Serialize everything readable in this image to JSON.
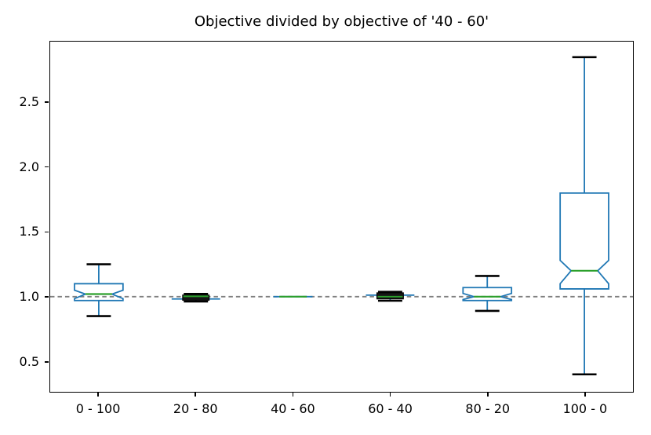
{
  "chart_data": {
    "type": "boxplot",
    "title": "Objective divided by objective of '40 - 60'",
    "categories": [
      "0 - 100",
      "20 - 80",
      "40 - 60",
      "60 - 40",
      "80 - 20",
      "100 - 0"
    ],
    "yticks": [
      0.5,
      1.0,
      1.5,
      2.0,
      2.5
    ],
    "ytick_labels": [
      "0.5",
      "1.0",
      "1.5",
      "2.0",
      "2.5"
    ],
    "ylim": [
      0.265,
      2.97
    ],
    "xlabel": "",
    "ylabel": "",
    "grid": false,
    "notched": true,
    "legend_position": "none",
    "reference_line": {
      "y": 1.0,
      "style": "dashed",
      "color": "#7f7f7f"
    },
    "boxes": [
      {
        "label": "0 - 100",
        "whislo": 0.85,
        "q1": 0.97,
        "med": 1.02,
        "q3": 1.1,
        "whishi": 1.25,
        "notch_lo": 0.985,
        "notch_hi": 1.05,
        "render": "notched"
      },
      {
        "label": "20 - 80",
        "whislo": 0.962,
        "q1": 0.972,
        "med": 1.003,
        "q3": 1.013,
        "whishi": 1.022,
        "notch_lo": 0.99,
        "notch_hi": 1.01,
        "render": "compressed"
      },
      {
        "label": "40 - 60",
        "whislo": 1.0,
        "q1": 1.0,
        "med": 1.0,
        "q3": 1.0,
        "whishi": 1.0,
        "notch_lo": 1.0,
        "notch_hi": 1.0,
        "render": "degenerate"
      },
      {
        "label": "60 - 40",
        "whislo": 0.968,
        "q1": 0.982,
        "med": 1.0,
        "q3": 1.03,
        "whishi": 1.038,
        "notch_lo": 0.99,
        "notch_hi": 1.015,
        "render": "compressed"
      },
      {
        "label": "80 - 20",
        "whislo": 0.89,
        "q1": 0.97,
        "med": 1.0,
        "q3": 1.07,
        "whishi": 1.16,
        "notch_lo": 0.978,
        "notch_hi": 1.025,
        "render": "notched"
      },
      {
        "label": "100 - 0",
        "whislo": 0.4,
        "q1": 1.06,
        "med": 1.2,
        "q3": 1.8,
        "whishi": 2.85,
        "notch_lo": 1.1,
        "notch_hi": 1.28,
        "render": "notched"
      }
    ],
    "colors": {
      "box": "#1f77b4",
      "whisker": "#1f77b4",
      "median": "#2ca02c",
      "cap": "#000000",
      "compressed_fill": "#151515",
      "reference": "#7f7f7f",
      "axis": "#000000",
      "text": "#000000",
      "background": "#ffffff"
    }
  }
}
